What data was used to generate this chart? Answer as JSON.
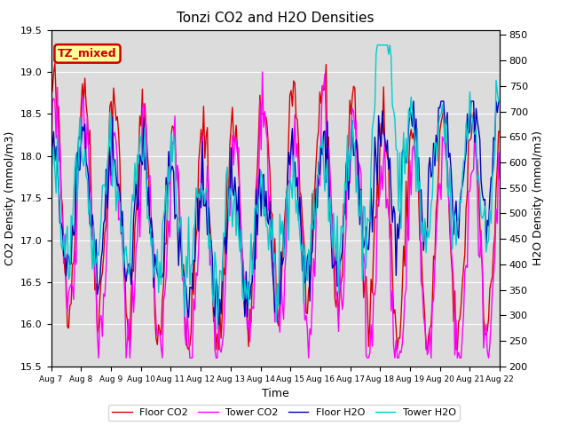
{
  "title": "Tonzi CO2 and H2O Densities",
  "xlabel": "Time",
  "ylabel_left": "CO2 Density (mmol/m3)",
  "ylabel_right": "H2O Density (mmol/m3)",
  "ylim_left": [
    15.5,
    19.5
  ],
  "ylim_right": [
    200,
    860
  ],
  "yticks_left": [
    15.5,
    16.0,
    16.5,
    17.0,
    17.5,
    18.0,
    18.5,
    19.0,
    19.5
  ],
  "yticks_right": [
    200,
    250,
    300,
    350,
    400,
    450,
    500,
    550,
    600,
    650,
    700,
    750,
    800,
    850
  ],
  "xtick_labels": [
    "Aug 7",
    "Aug 8",
    "Aug 9",
    "Aug 10",
    "Aug 11",
    "Aug 12",
    "Aug 13",
    "Aug 14",
    "Aug 15",
    "Aug 16",
    "Aug 17",
    "Aug 18",
    "Aug 19",
    "Aug 20",
    "Aug 21",
    "Aug 22"
  ],
  "annotation_text": "TZ_mixed",
  "annotation_color": "#cc0000",
  "annotation_bg": "#ffff99",
  "colors": {
    "floor_co2": "#dd0000",
    "tower_co2": "#ff00ff",
    "floor_h2o": "#0000bb",
    "tower_h2o": "#00cccc"
  },
  "legend_labels": [
    "Floor CO2",
    "Tower CO2",
    "Floor H2O",
    "Tower H2O"
  ],
  "bg_color": "#dcdcdc",
  "linewidth": 1.0,
  "title_fontsize": 11,
  "axis_label_fontsize": 9,
  "tick_fontsize": 8,
  "legend_fontsize": 8
}
